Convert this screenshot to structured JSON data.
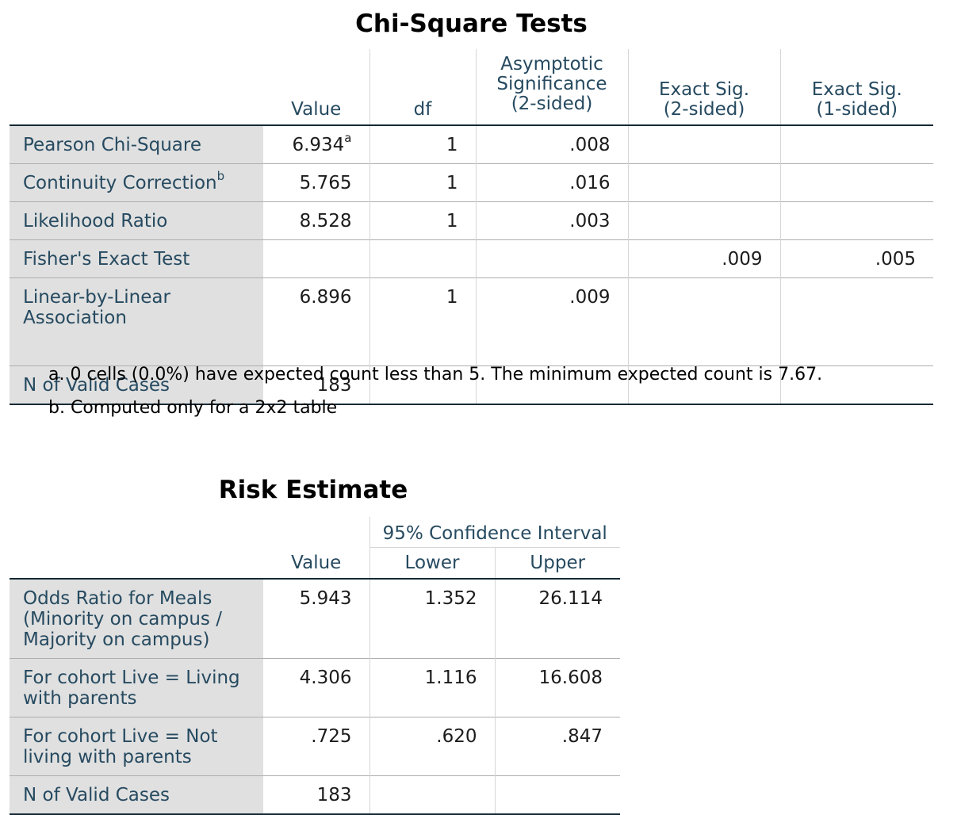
{
  "chi_square": {
    "title": "Chi-Square Tests",
    "columns": [
      "Value",
      "df",
      "Asymptotic\nSignificance\n(2-sided)",
      "Exact Sig.\n(2-sided)",
      "Exact Sig.\n(1-sided)"
    ],
    "rows": [
      {
        "label": "Pearson Chi-Square",
        "label_sup": "",
        "value": "6.934",
        "value_sup": "a",
        "df": "1",
        "asymp": ".008",
        "exact2": "",
        "exact1": ""
      },
      {
        "label": "Continuity Correction",
        "label_sup": "b",
        "value": "5.765",
        "value_sup": "",
        "df": "1",
        "asymp": ".016",
        "exact2": "",
        "exact1": ""
      },
      {
        "label": "Likelihood Ratio",
        "label_sup": "",
        "value": "8.528",
        "value_sup": "",
        "df": "1",
        "asymp": ".003",
        "exact2": "",
        "exact1": ""
      },
      {
        "label": "Fisher's Exact Test",
        "label_sup": "",
        "value": "",
        "value_sup": "",
        "df": "",
        "asymp": "",
        "exact2": ".009",
        "exact1": ".005"
      },
      {
        "label": "Linear-by-Linear Association",
        "label_sup": "",
        "value": "6.896",
        "value_sup": "",
        "df": "1",
        "asymp": ".009",
        "exact2": "",
        "exact1": ""
      },
      {
        "label": "N of Valid Cases",
        "label_sup": "",
        "value": "183",
        "value_sup": "",
        "df": "",
        "asymp": "",
        "exact2": "",
        "exact1": ""
      }
    ],
    "footnotes": [
      "a. 0 cells (0.0%) have expected count less than 5. The minimum expected count is 7.67.",
      "b. Computed only for a 2x2 table"
    ]
  },
  "risk": {
    "title": "Risk Estimate",
    "value_header": "Value",
    "ci_header": "95% Confidence Interval",
    "lower_header": "Lower",
    "upper_header": "Upper",
    "rows": [
      {
        "label": "Odds Ratio for Meals (Minority on campus / Majority on campus)",
        "value": "5.943",
        "lower": "1.352",
        "upper": "26.114"
      },
      {
        "label": "For cohort Live = Living with parents",
        "value": "4.306",
        "lower": "1.116",
        "upper": "16.608"
      },
      {
        "label": "For cohort Live = Not living with parents",
        "value": ".725",
        "lower": ".620",
        "upper": ".847"
      },
      {
        "label": "N of Valid Cases",
        "value": "183",
        "lower": "",
        "upper": ""
      }
    ]
  }
}
